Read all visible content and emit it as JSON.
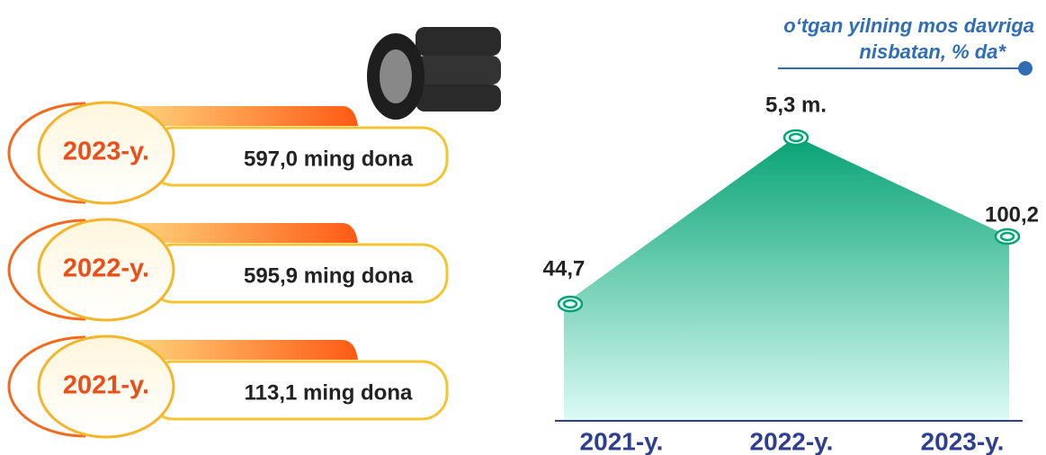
{
  "header": {
    "subtitle": [
      "o‘tgan yilning mos davriga",
      "nisbatan, % da*"
    ]
  },
  "production": [
    {
      "year": "2023-y.",
      "amount": "597,0 ming dona"
    },
    {
      "year": "2022-y.",
      "amount": "595,9 ming dona"
    },
    {
      "year": "2021-y.",
      "amount": "113,1 ming dona"
    }
  ],
  "growth": {
    "labels": [
      "44,7",
      "5,3 m.",
      "100,2"
    ],
    "categories": [
      "2021-y.",
      "2022-y.",
      "2023-y."
    ]
  }
}
